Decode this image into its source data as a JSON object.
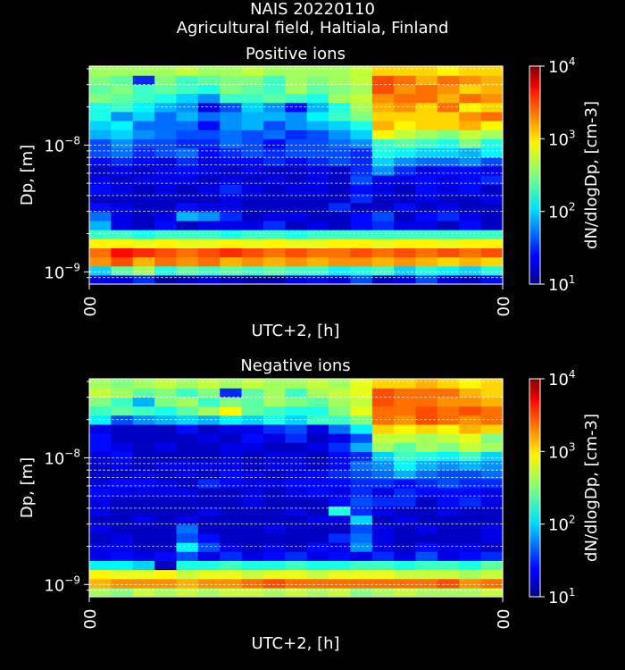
{
  "figure": {
    "title_line1": "NAIS 20220110",
    "title_line2": "Agricultural field, Haltiala, Finland",
    "background": "#000000",
    "text_color": "#ffffff"
  },
  "chart_data": [
    {
      "type": "heatmap",
      "title": "Positive ions",
      "xlabel": "UTC+2, [h]",
      "ylabel": "Dp, [m]",
      "x_ticks": [
        "00",
        "00"
      ],
      "y_scale": "log",
      "y_ticks": [
        {
          "base": "10",
          "exp": "−8",
          "value": 1e-08
        },
        {
          "base": "10",
          "exp": "−9",
          "value": 1e-09
        }
      ],
      "ylim": [
        8e-10,
        4.2e-08
      ],
      "colorbar": {
        "label": "dN/dlogDp, [cm-3]",
        "scale": "log",
        "range": [
          10,
          10000
        ],
        "colormap": "jet",
        "ticks": [
          {
            "base": "10",
            "exp": "1"
          },
          {
            "base": "10",
            "exp": "2"
          },
          {
            "base": "10",
            "exp": "3"
          },
          {
            "base": "10",
            "exp": "4"
          }
        ]
      },
      "grid": "dashed horizontal lines",
      "z_log10": [
        [
          1.3,
          1.3,
          1.5,
          1.1,
          1.2,
          1.3,
          1.2,
          1.1,
          1.1,
          1.3,
          1.4,
          1.3,
          1.6,
          1.2,
          1.3,
          1.6,
          1.3,
          1.2,
          1.4
        ],
        [
          2.0,
          2.4,
          2.6,
          2.2,
          2.4,
          2.3,
          2.4,
          2.3,
          2.4,
          2.3,
          2.3,
          2.1,
          2.2,
          2.3,
          2.0,
          2.2,
          2.1,
          2.0,
          2.2
        ],
        [
          3.2,
          3.4,
          3.1,
          3.3,
          3.2,
          3.3,
          3.1,
          3.2,
          3.1,
          3.2,
          3.1,
          3.2,
          3.2,
          3.1,
          3.2,
          3.1,
          3.0,
          3.1,
          3.0
        ],
        [
          3.3,
          3.6,
          3.5,
          3.4,
          3.3,
          3.4,
          3.5,
          3.4,
          3.3,
          3.4,
          3.3,
          3.3,
          3.4,
          3.3,
          3.4,
          3.3,
          3.4,
          3.3,
          3.4
        ],
        [
          2.9,
          2.9,
          2.8,
          2.9,
          2.8,
          2.8,
          2.9,
          2.8,
          2.9,
          2.8,
          2.8,
          2.9,
          2.9,
          2.8,
          2.9,
          2.9,
          2.8,
          2.9,
          2.9
        ],
        [
          2.3,
          2.3,
          2.2,
          2.3,
          2.3,
          2.3,
          2.2,
          2.3,
          2.3,
          2.2,
          2.3,
          2.3,
          2.3,
          2.3,
          2.3,
          2.3,
          2.3,
          2.3,
          2.3
        ],
        [
          1.9,
          1.3,
          1.2,
          1.4,
          1.2,
          1.3,
          1.3,
          1.3,
          1.5,
          1.2,
          1.3,
          1.2,
          1.4,
          1.5,
          1.3,
          1.3,
          1.2,
          1.4,
          1.2
        ],
        [
          1.7,
          1.3,
          1.2,
          1.3,
          1.9,
          1.8,
          1.5,
          1.2,
          1.3,
          1.3,
          1.2,
          1.2,
          1.4,
          1.6,
          1.2,
          1.4,
          1.5,
          1.3,
          1.2
        ],
        [
          1.4,
          1.3,
          1.2,
          1.2,
          1.4,
          1.3,
          1.3,
          1.2,
          1.2,
          1.2,
          1.2,
          1.5,
          1.2,
          1.2,
          1.4,
          1.2,
          1.3,
          1.2,
          1.2
        ],
        [
          1.2,
          1.2,
          1.2,
          1.2,
          1.2,
          1.2,
          1.3,
          1.2,
          1.2,
          1.2,
          1.2,
          1.2,
          1.5,
          1.2,
          1.2,
          1.3,
          1.2,
          1.2,
          1.3
        ],
        [
          1.4,
          1.3,
          1.2,
          1.3,
          1.2,
          1.3,
          1.5,
          1.3,
          1.2,
          1.3,
          1.3,
          1.2,
          1.4,
          1.3,
          1.2,
          1.4,
          1.3,
          1.4,
          1.2
        ],
        [
          1.3,
          1.2,
          1.3,
          1.3,
          1.3,
          1.2,
          1.3,
          1.2,
          1.3,
          1.2,
          1.3,
          1.2,
          1.6,
          1.3,
          1.3,
          1.4,
          1.3,
          1.4,
          1.5
        ],
        [
          1.2,
          1.3,
          1.2,
          1.3,
          1.4,
          1.3,
          1.2,
          1.3,
          1.2,
          1.2,
          1.3,
          1.2,
          1.5,
          1.8,
          1.5,
          1.3,
          1.4,
          1.4,
          1.3
        ],
        [
          1.4,
          1.5,
          1.4,
          1.3,
          1.5,
          1.3,
          1.4,
          1.4,
          1.5,
          1.4,
          1.5,
          1.6,
          1.5,
          2.0,
          1.8,
          1.7,
          1.7,
          1.8,
          1.6
        ],
        [
          1.6,
          1.7,
          1.5,
          1.6,
          1.7,
          1.4,
          1.5,
          1.6,
          1.5,
          1.6,
          1.6,
          1.6,
          1.5,
          2.2,
          2.1,
          2.0,
          2.0,
          1.9,
          2.1
        ],
        [
          1.6,
          1.8,
          1.6,
          1.6,
          1.5,
          1.5,
          1.7,
          1.6,
          1.4,
          1.6,
          1.6,
          1.7,
          1.8,
          2.3,
          2.4,
          2.3,
          2.2,
          2.5,
          2.2
        ],
        [
          1.9,
          2.0,
          1.8,
          1.7,
          1.6,
          1.6,
          1.7,
          1.6,
          1.7,
          1.5,
          1.6,
          1.8,
          2.0,
          2.9,
          2.7,
          2.6,
          2.5,
          2.7,
          2.6
        ],
        [
          2.0,
          2.1,
          1.7,
          1.7,
          1.7,
          1.4,
          1.8,
          1.9,
          1.6,
          1.8,
          1.9,
          2.0,
          2.2,
          3.1,
          2.9,
          3.0,
          3.0,
          3.1,
          2.9
        ],
        [
          2.2,
          1.8,
          2.0,
          1.7,
          1.9,
          1.7,
          1.8,
          1.9,
          1.9,
          1.8,
          2.1,
          2.3,
          2.5,
          3.0,
          3.0,
          3.0,
          3.0,
          3.2,
          3.3
        ],
        [
          2.2,
          2.3,
          2.1,
          1.9,
          1.8,
          1.3,
          1.6,
          2.0,
          1.8,
          1.4,
          1.9,
          2.2,
          2.6,
          3.1,
          3.2,
          3.0,
          3.3,
          2.9,
          3.0
        ],
        [
          2.5,
          2.4,
          2.3,
          2.2,
          2.0,
          1.8,
          2.3,
          2.3,
          2.4,
          2.3,
          2.2,
          2.6,
          2.7,
          3.2,
          3.3,
          3.3,
          3.1,
          3.3,
          3.2
        ],
        [
          2.4,
          2.5,
          2.3,
          2.4,
          2.3,
          2.2,
          2.5,
          2.4,
          2.3,
          2.6,
          2.4,
          2.5,
          2.6,
          3.4,
          3.2,
          3.3,
          3.2,
          3.0,
          3.1
        ],
        [
          2.5,
          2.4,
          1.5,
          2.5,
          2.3,
          2.4,
          2.5,
          2.5,
          2.3,
          2.6,
          2.5,
          2.6,
          2.7,
          3.4,
          3.3,
          3.1,
          3.3,
          3.2,
          3.1
        ],
        [
          2.6,
          2.6,
          2.6,
          2.6,
          2.7,
          2.6,
          2.6,
          2.7,
          2.6,
          2.6,
          2.6,
          2.6,
          2.7,
          3.0,
          3.0,
          3.0,
          2.9,
          3.0,
          3.0
        ]
      ]
    },
    {
      "type": "heatmap",
      "title": "Negative ions",
      "xlabel": "UTC+2, [h]",
      "ylabel": "Dp, [m]",
      "x_ticks": [
        "00",
        "00"
      ],
      "y_scale": "log",
      "y_ticks": [
        {
          "base": "10",
          "exp": "−8",
          "value": 1e-08
        },
        {
          "base": "10",
          "exp": "−9",
          "value": 1e-09
        }
      ],
      "ylim": [
        8e-10,
        4.2e-08
      ],
      "colorbar": {
        "label": "dN/dlogDp, [cm-3]",
        "scale": "log",
        "range": [
          10,
          10000
        ],
        "colormap": "jet",
        "ticks": [
          {
            "base": "10",
            "exp": "1"
          },
          {
            "base": "10",
            "exp": "2"
          },
          {
            "base": "10",
            "exp": "3"
          },
          {
            "base": "10",
            "exp": "4"
          }
        ]
      },
      "grid": "dashed horizontal lines",
      "z_log10": [
        [
          2.6,
          2.5,
          2.7,
          2.6,
          2.7,
          2.6,
          2.7,
          2.7,
          2.6,
          2.7,
          2.6,
          2.7,
          2.5,
          2.6,
          2.7,
          2.6,
          2.6,
          2.6,
          2.7
        ],
        [
          3.1,
          3.2,
          3.2,
          3.2,
          3.1,
          3.2,
          3.2,
          3.3,
          3.4,
          3.3,
          3.3,
          3.3,
          3.3,
          3.3,
          3.3,
          3.3,
          3.4,
          3.2,
          3.3
        ],
        [
          2.9,
          2.8,
          2.8,
          2.9,
          2.7,
          2.8,
          2.8,
          2.7,
          2.8,
          2.8,
          2.7,
          2.8,
          2.8,
          2.8,
          2.7,
          2.7,
          2.7,
          2.6,
          2.7
        ],
        [
          2.1,
          2.1,
          2.0,
          1.2,
          2.2,
          2.2,
          2.3,
          2.2,
          2.2,
          2.3,
          2.2,
          2.2,
          2.3,
          2.3,
          2.2,
          2.3,
          2.3,
          2.2,
          2.4
        ],
        [
          1.3,
          1.4,
          1.3,
          1.4,
          1.6,
          1.3,
          1.5,
          1.3,
          1.4,
          1.5,
          1.3,
          1.4,
          1.3,
          1.5,
          1.3,
          1.6,
          1.3,
          1.4,
          1.5
        ],
        [
          1.3,
          1.3,
          1.2,
          1.2,
          2.1,
          1.6,
          1.3,
          1.2,
          1.3,
          1.2,
          1.4,
          1.3,
          1.8,
          1.3,
          1.2,
          1.4,
          1.3,
          1.3,
          1.2
        ],
        [
          1.2,
          1.3,
          1.2,
          1.2,
          1.6,
          1.4,
          1.2,
          1.2,
          1.2,
          1.2,
          1.2,
          1.5,
          1.7,
          1.3,
          1.2,
          1.2,
          1.2,
          1.2,
          1.3
        ],
        [
          1.3,
          1.2,
          1.2,
          1.2,
          1.7,
          1.2,
          1.2,
          1.2,
          1.3,
          1.2,
          1.2,
          1.2,
          1.6,
          1.3,
          1.2,
          1.3,
          1.2,
          1.2,
          1.3
        ],
        [
          1.2,
          1.2,
          1.3,
          1.2,
          1.3,
          1.2,
          1.2,
          1.2,
          1.2,
          1.2,
          1.3,
          1.3,
          2.0,
          1.2,
          1.3,
          1.2,
          1.2,
          1.2,
          1.2
        ],
        [
          1.3,
          1.2,
          1.2,
          1.2,
          1.2,
          1.3,
          1.2,
          1.2,
          1.2,
          1.3,
          1.2,
          2.2,
          1.5,
          1.3,
          1.2,
          1.2,
          1.3,
          1.2,
          1.2
        ],
        [
          1.3,
          1.2,
          1.2,
          1.2,
          1.2,
          1.2,
          1.2,
          1.3,
          1.2,
          1.2,
          1.2,
          1.4,
          1.6,
          1.5,
          1.5,
          1.2,
          1.4,
          1.5,
          1.3
        ],
        [
          1.4,
          1.3,
          1.3,
          1.3,
          1.3,
          1.2,
          1.2,
          1.3,
          1.2,
          1.3,
          1.4,
          1.3,
          1.5,
          1.3,
          1.5,
          1.4,
          1.4,
          1.4,
          1.3
        ],
        [
          1.3,
          1.4,
          1.4,
          1.3,
          1.2,
          1.5,
          1.4,
          1.3,
          1.3,
          1.4,
          1.4,
          1.4,
          1.5,
          1.5,
          1.4,
          1.5,
          1.6,
          1.5,
          1.5
        ],
        [
          1.2,
          1.2,
          1.3,
          1.2,
          1.3,
          1.2,
          1.4,
          1.3,
          1.2,
          1.3,
          1.4,
          1.5,
          1.6,
          1.7,
          1.9,
          1.7,
          1.6,
          1.6,
          1.7
        ],
        [
          1.2,
          1.3,
          1.2,
          1.3,
          1.3,
          1.3,
          1.3,
          1.2,
          1.3,
          1.3,
          1.2,
          1.4,
          1.7,
          1.8,
          2.1,
          1.9,
          1.8,
          1.9,
          1.8
        ],
        [
          1.3,
          1.4,
          1.2,
          1.2,
          1.2,
          1.2,
          1.3,
          1.2,
          1.3,
          1.3,
          1.2,
          1.4,
          1.5,
          2.0,
          2.3,
          2.2,
          2.1,
          2.3,
          2.0
        ],
        [
          1.4,
          1.3,
          1.2,
          1.3,
          1.2,
          1.2,
          1.3,
          1.3,
          1.2,
          1.2,
          1.3,
          1.5,
          1.9,
          2.6,
          2.4,
          2.6,
          2.5,
          2.7,
          2.6
        ],
        [
          1.4,
          1.2,
          1.2,
          1.2,
          1.2,
          1.3,
          1.2,
          1.4,
          1.3,
          1.5,
          1.2,
          1.3,
          1.6,
          2.7,
          2.7,
          2.6,
          2.7,
          2.8,
          2.5
        ],
        [
          1.3,
          1.2,
          1.2,
          1.2,
          1.4,
          1.2,
          1.3,
          1.3,
          1.5,
          1.6,
          1.3,
          1.7,
          2.1,
          3.0,
          2.9,
          3.0,
          2.9,
          3.1,
          3.0
        ],
        [
          2.1,
          1.6,
          1.8,
          1.9,
          2.0,
          1.9,
          2.1,
          2.0,
          2.2,
          2.0,
          2.3,
          2.3,
          2.5,
          3.3,
          3.2,
          3.4,
          3.3,
          3.2,
          3.3
        ],
        [
          2.3,
          2.4,
          2.3,
          2.2,
          2.4,
          2.6,
          2.9,
          2.4,
          2.3,
          2.2,
          2.2,
          2.5,
          2.8,
          3.3,
          3.3,
          3.4,
          3.3,
          3.4,
          3.3
        ],
        [
          2.5,
          2.3,
          1.9,
          2.5,
          2.6,
          2.3,
          2.5,
          2.4,
          2.6,
          2.5,
          2.4,
          2.6,
          2.7,
          3.4,
          3.3,
          3.3,
          3.2,
          3.2,
          3.1
        ],
        [
          2.7,
          2.6,
          2.4,
          2.5,
          2.3,
          2.5,
          1.5,
          2.4,
          2.6,
          2.3,
          2.6,
          2.7,
          2.8,
          3.4,
          3.3,
          3.3,
          3.3,
          3.1,
          3.0
        ],
        [
          2.6,
          2.5,
          2.6,
          2.7,
          2.6,
          2.7,
          2.6,
          2.7,
          2.6,
          2.6,
          2.7,
          2.6,
          2.8,
          3.0,
          3.0,
          3.1,
          3.0,
          2.9,
          3.0
        ]
      ]
    }
  ]
}
